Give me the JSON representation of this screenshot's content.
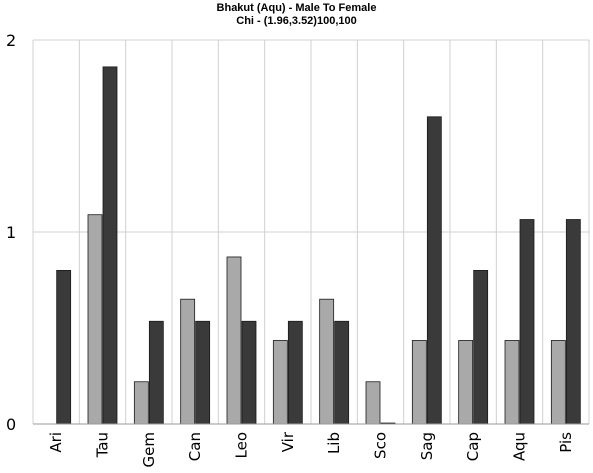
{
  "chart_data": {
    "type": "bar",
    "title_lines": [
      "Bhakut (Aqu) - Male To Female",
      "Chi - (1.96,3.52)100,100"
    ],
    "xlabel": "",
    "ylabel": "",
    "categories": [
      "Ari",
      "Tau",
      "Gem",
      "Can",
      "Leo",
      "Vir",
      "Lib",
      "Sco",
      "Sag",
      "Cap",
      "Aqu",
      "Pis"
    ],
    "series": [
      {
        "values": [
          0,
          1.09,
          0.22,
          0.65,
          0.87,
          0.435,
          0.65,
          0.22,
          0.435,
          0.435,
          0.435,
          0.435
        ],
        "color": "#a9a9a9"
      },
      {
        "values": [
          0.8,
          1.86,
          0.535,
          0.535,
          0.535,
          0.535,
          0.535,
          0.005,
          1.6,
          0.8,
          1.065,
          1.065
        ],
        "color": "#3a3a3a"
      }
    ],
    "ylim": [
      0,
      2
    ],
    "yticks": [
      0,
      1,
      2
    ],
    "grid": true,
    "legend": "none"
  }
}
